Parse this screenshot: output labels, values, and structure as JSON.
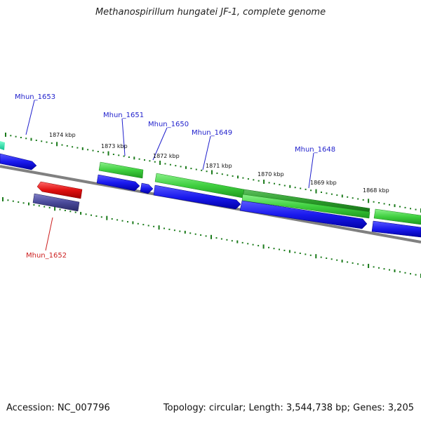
{
  "title": "Methanospirillum hungatei JF-1, complete genome",
  "accession": "Accession: NC_007796",
  "stats": "Topology: circular; Length: 3,544,738 bp; Genes: 3,205",
  "colors": {
    "backbone": "#808080",
    "tick": "#1a7a1a",
    "forward_gene": "#1a1aee",
    "cds_green": "#3fcf3f",
    "cds_dark_green": "#2a9a2a",
    "rna_gene": "#e01010",
    "pseudo_gene": "#4a4a9a",
    "gene_label_blue": "#1f1fcc",
    "gene_label_red": "#cc1f1f"
  },
  "scale_labels": [
    "1874 kbp",
    "1873 kbp",
    "1872 kbp",
    "1871 kbp",
    "1870 kbp",
    "1869 kbp",
    "1868 kbp"
  ],
  "gene_labels": [
    {
      "text": "Mhun_1653",
      "color": "blue"
    },
    {
      "text": "Mhun_1651",
      "color": "blue"
    },
    {
      "text": "Mhun_1650",
      "color": "blue"
    },
    {
      "text": "Mhun_1649",
      "color": "blue"
    },
    {
      "text": "Mhun_1648",
      "color": "blue"
    },
    {
      "text": "Mhun_1652",
      "color": "red"
    }
  ]
}
